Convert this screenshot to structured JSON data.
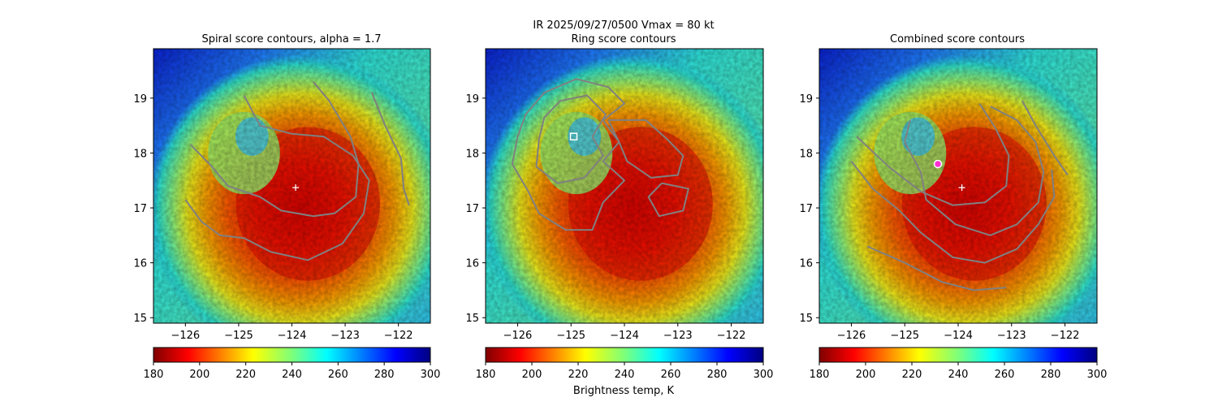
{
  "figure": {
    "suptitle_line1": "IR  2025/09/27/0500    Vmax = 80 kt",
    "colorbar_label": "Brightness temp, K",
    "colormap": "jet (reversed: red = cold cloud tops, blue = warm)",
    "contour_color": "#808080",
    "center_marker_color": "#ffffff",
    "combined_marker_color": "#ff2fd2"
  },
  "chart_data": [
    {
      "type": "heatmap",
      "title": "Spiral score contours, alpha =  1.7",
      "xlim": [
        -126.6,
        -121.4
      ],
      "ylim": [
        14.9,
        19.9
      ],
      "xticks": [
        -126,
        -125,
        -124,
        -123,
        -122
      ],
      "xtick_labels": [
        "−126",
        "−125",
        "−124",
        "−123",
        "−122"
      ],
      "yticks": [
        15,
        16,
        17,
        18,
        19
      ],
      "ytick_labels": [
        "15",
        "16",
        "17",
        "18",
        "19"
      ],
      "center": {
        "lon": -123.93,
        "lat": 17.37,
        "marker": "+"
      },
      "colorbar": {
        "range": [
          180,
          300
        ],
        "ticks": [
          180,
          200,
          220,
          240,
          260,
          280,
          300
        ],
        "tick_labels": [
          "180",
          "200",
          "220",
          "240",
          "260",
          "280",
          "300"
        ]
      },
      "contours": [
        [
          [
            -125.9,
            18.15
          ],
          [
            -125.5,
            17.75
          ],
          [
            -125.2,
            17.4
          ],
          [
            -124.6,
            17.2
          ],
          [
            -124.2,
            16.95
          ],
          [
            -123.6,
            16.85
          ],
          [
            -123.2,
            16.9
          ],
          [
            -122.8,
            17.2
          ],
          [
            -122.75,
            17.8
          ],
          [
            -122.9,
            18.3
          ],
          [
            -123.3,
            18.95
          ],
          [
            -123.6,
            19.3
          ]
        ],
        [
          [
            -124.9,
            19.05
          ],
          [
            -124.6,
            18.5
          ],
          [
            -124.0,
            18.35
          ],
          [
            -123.4,
            18.3
          ],
          [
            -122.85,
            17.95
          ],
          [
            -122.55,
            17.5
          ],
          [
            -122.65,
            16.9
          ],
          [
            -123.05,
            16.35
          ],
          [
            -123.7,
            16.05
          ],
          [
            -124.4,
            16.2
          ],
          [
            -124.9,
            16.45
          ],
          [
            -125.35,
            16.5
          ],
          [
            -125.7,
            16.75
          ],
          [
            -126.0,
            17.15
          ]
        ],
        [
          [
            -122.5,
            19.1
          ],
          [
            -122.25,
            18.5
          ],
          [
            -121.95,
            17.9
          ],
          [
            -121.9,
            17.35
          ],
          [
            -121.8,
            17.05
          ]
        ]
      ]
    },
    {
      "type": "heatmap",
      "title": "Ring score contours",
      "xlim": [
        -126.6,
        -121.4
      ],
      "ylim": [
        14.9,
        19.9
      ],
      "xticks": [
        -126,
        -125,
        -124,
        -123,
        -122
      ],
      "xtick_labels": [
        "−126",
        "−125",
        "−124",
        "−123",
        "−122"
      ],
      "yticks": [
        15,
        16,
        17,
        18,
        19
      ],
      "ytick_labels": [
        "15",
        "16",
        "17",
        "18",
        "19"
      ],
      "center": {
        "lon": -124.95,
        "lat": 18.3,
        "marker": "square"
      },
      "colorbar": {
        "range": [
          180,
          300
        ],
        "ticks": [
          180,
          200,
          220,
          240,
          260,
          280,
          300
        ],
        "tick_labels": [
          "180",
          "200",
          "220",
          "240",
          "260",
          "280",
          "300"
        ]
      },
      "contours": [
        [
          [
            -125.5,
            19.1
          ],
          [
            -124.9,
            19.35
          ],
          [
            -124.3,
            19.2
          ],
          [
            -124.0,
            18.9
          ],
          [
            -124.4,
            18.6
          ],
          [
            -124.1,
            18.2
          ],
          [
            -124.4,
            17.85
          ],
          [
            -124.0,
            17.5
          ],
          [
            -124.4,
            17.1
          ],
          [
            -124.6,
            16.6
          ],
          [
            -125.1,
            16.6
          ],
          [
            -125.6,
            16.9
          ],
          [
            -125.8,
            17.3
          ],
          [
            -126.1,
            17.8
          ],
          [
            -126.0,
            18.3
          ],
          [
            -125.85,
            18.7
          ],
          [
            -125.5,
            19.1
          ]
        ],
        [
          [
            -125.2,
            18.95
          ],
          [
            -124.7,
            19.05
          ],
          [
            -124.35,
            18.7
          ],
          [
            -124.6,
            18.3
          ],
          [
            -124.4,
            17.95
          ],
          [
            -124.75,
            17.55
          ],
          [
            -125.25,
            17.45
          ],
          [
            -125.65,
            17.75
          ],
          [
            -125.6,
            18.25
          ],
          [
            -125.5,
            18.65
          ],
          [
            -125.2,
            18.95
          ]
        ],
        [
          [
            -124.3,
            18.6
          ],
          [
            -123.6,
            18.6
          ],
          [
            -123.2,
            18.25
          ],
          [
            -122.9,
            17.95
          ],
          [
            -123.0,
            17.6
          ],
          [
            -123.5,
            17.55
          ],
          [
            -123.95,
            17.85
          ],
          [
            -124.1,
            18.2
          ],
          [
            -124.3,
            18.6
          ]
        ],
        [
          [
            -123.3,
            17.45
          ],
          [
            -122.8,
            17.35
          ],
          [
            -122.9,
            16.95
          ],
          [
            -123.35,
            16.85
          ],
          [
            -123.55,
            17.2
          ],
          [
            -123.3,
            17.45
          ]
        ]
      ]
    },
    {
      "type": "heatmap",
      "title": "Combined score contours",
      "xlim": [
        -126.6,
        -121.4
      ],
      "ylim": [
        14.9,
        19.9
      ],
      "xticks": [
        -126,
        -125,
        -124,
        -123,
        -122
      ],
      "xtick_labels": [
        "−126",
        "−125",
        "−124",
        "−123",
        "−122"
      ],
      "yticks": [
        15,
        16,
        17,
        18,
        19
      ],
      "ytick_labels": [
        "15",
        "16",
        "17",
        "18",
        "19"
      ],
      "center": {
        "lon": -123.93,
        "lat": 17.37,
        "marker": "+"
      },
      "best_point": {
        "lon": -124.38,
        "lat": 17.8,
        "marker": "circle"
      },
      "colorbar": {
        "range": [
          180,
          300
        ],
        "ticks": [
          180,
          200,
          220,
          240,
          260,
          280,
          300
        ],
        "tick_labels": [
          "180",
          "200",
          "220",
          "240",
          "260",
          "280",
          "300"
        ]
      },
      "contours": [
        [
          [
            -125.9,
            18.3
          ],
          [
            -125.3,
            17.75
          ],
          [
            -124.7,
            17.3
          ],
          [
            -124.1,
            17.05
          ],
          [
            -123.5,
            17.1
          ],
          [
            -123.1,
            17.4
          ],
          [
            -123.05,
            17.95
          ],
          [
            -123.3,
            18.45
          ],
          [
            -123.6,
            18.9
          ]
        ],
        [
          [
            -124.9,
            18.6
          ],
          [
            -125.0,
            18.2
          ],
          [
            -124.7,
            17.65
          ],
          [
            -124.6,
            17.15
          ],
          [
            -124.05,
            16.7
          ],
          [
            -123.4,
            16.5
          ],
          [
            -122.9,
            16.7
          ],
          [
            -122.5,
            17.1
          ],
          [
            -122.4,
            17.65
          ],
          [
            -122.55,
            18.2
          ],
          [
            -122.9,
            18.6
          ],
          [
            -123.4,
            18.85
          ]
        ],
        [
          [
            -126.0,
            17.85
          ],
          [
            -125.6,
            17.35
          ],
          [
            -125.1,
            16.95
          ],
          [
            -124.7,
            16.55
          ],
          [
            -124.1,
            16.1
          ],
          [
            -123.5,
            16.0
          ],
          [
            -122.9,
            16.25
          ],
          [
            -122.5,
            16.7
          ],
          [
            -122.2,
            17.2
          ],
          [
            -122.25,
            17.7
          ]
        ],
        [
          [
            -125.7,
            16.3
          ],
          [
            -125.0,
            16.0
          ],
          [
            -124.3,
            15.65
          ],
          [
            -123.7,
            15.5
          ],
          [
            -123.1,
            15.55
          ]
        ],
        [
          [
            -122.8,
            18.95
          ],
          [
            -122.55,
            18.5
          ],
          [
            -122.2,
            17.95
          ],
          [
            -121.95,
            17.6
          ]
        ]
      ]
    }
  ]
}
